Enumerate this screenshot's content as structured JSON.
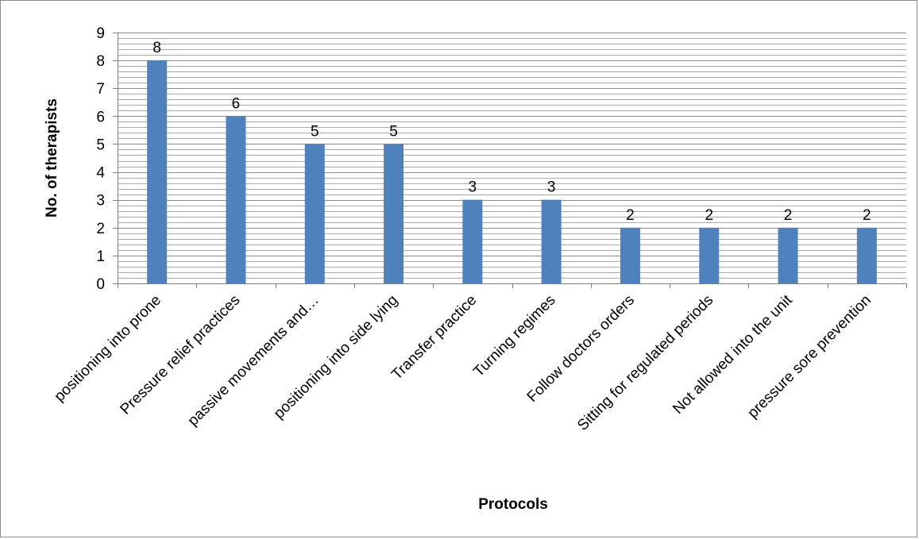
{
  "chart_data": {
    "type": "bar",
    "title": "",
    "xlabel": "Protocols",
    "ylabel": "No. of therapists",
    "categories": [
      "positioning into prone",
      "Pressure relief practices",
      "passive movements and…",
      "positioning into side lying",
      "Transfer practice",
      "Turning regimes",
      "Follow doctors orders",
      "Sitting for regulated periods",
      "Not allowed into the unit",
      "pressure sore prevention"
    ],
    "values": [
      8,
      6,
      5,
      5,
      3,
      3,
      2,
      2,
      2,
      2
    ],
    "ylim": [
      0,
      9
    ],
    "yticks": [
      0,
      1,
      2,
      3,
      4,
      5,
      6,
      7,
      8,
      9
    ],
    "minor_gridlines_per_unit": 5,
    "grid": true,
    "data_labels": true,
    "legend": "none",
    "colors": {
      "bar": "#4f81bd",
      "grid": "#8c8c8c",
      "axis": "#7f7f7f"
    }
  }
}
